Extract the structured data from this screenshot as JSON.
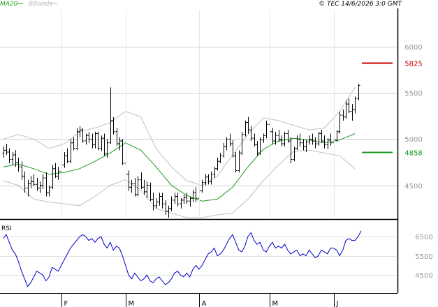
{
  "header": {
    "legend": [
      {
        "label": "MA20",
        "color": "#1e9a1e"
      },
      {
        "label": "BBands",
        "color": "#b4b4b4"
      }
    ],
    "copyright": "© TEC 14/6/2026 3:0 GMT"
  },
  "chart_data": [
    {
      "type": "ohlc",
      "panel": "price",
      "ylim": [
        4150,
        6400
      ],
      "y_ticks": [
        {
          "value": 6000,
          "label": "6000"
        },
        {
          "value": 5500,
          "label": "5500"
        },
        {
          "value": 5000,
          "label": "5000"
        },
        {
          "value": 4500,
          "label": "4500"
        }
      ],
      "x_labels": [
        {
          "label": "F",
          "index": 19
        },
        {
          "label": "M",
          "index": 40
        },
        {
          "label": "A",
          "index": 64
        },
        {
          "label": "M",
          "index": 87
        },
        {
          "label": "J",
          "index": 108
        }
      ],
      "levels": [
        {
          "value": 5825,
          "label": "5825",
          "color": "#cc0000"
        },
        {
          "value": 4858,
          "label": "4858",
          "color": "#1e9a1e"
        }
      ],
      "bars": [
        [
          4850,
          4920,
          4800,
          4880
        ],
        [
          4880,
          4950,
          4830,
          4860
        ],
        [
          4860,
          4900,
          4740,
          4780
        ],
        [
          4780,
          4860,
          4720,
          4830
        ],
        [
          4830,
          4880,
          4700,
          4750
        ],
        [
          4750,
          4800,
          4650,
          4700
        ],
        [
          4700,
          4760,
          4560,
          4600
        ],
        [
          4600,
          4650,
          4420,
          4470
        ],
        [
          4470,
          4560,
          4380,
          4520
        ],
        [
          4520,
          4600,
          4470,
          4540
        ],
        [
          4540,
          4620,
          4490,
          4510
        ],
        [
          4510,
          4580,
          4440,
          4470
        ],
        [
          4470,
          4540,
          4420,
          4500
        ],
        [
          4500,
          4620,
          4460,
          4580
        ],
        [
          4580,
          4640,
          4380,
          4420
        ],
        [
          4420,
          4500,
          4380,
          4480
        ],
        [
          4480,
          4720,
          4460,
          4680
        ],
        [
          4680,
          4740,
          4580,
          4600
        ],
        [
          4600,
          4700,
          4560,
          4650
        ],
        [
          4650,
          4750,
          4600,
          4720
        ],
        [
          4720,
          4860,
          4690,
          4820
        ],
        [
          4820,
          4900,
          4740,
          4760
        ],
        [
          4760,
          5000,
          4740,
          4960
        ],
        [
          4960,
          5020,
          4880,
          4900
        ],
        [
          4900,
          5120,
          4880,
          5080
        ],
        [
          5080,
          5140,
          5020,
          5100
        ],
        [
          5100,
          5120,
          4960,
          4980
        ],
        [
          4980,
          5060,
          4940,
          5040
        ],
        [
          5040,
          5080,
          4960,
          5000
        ],
        [
          5000,
          5060,
          4900,
          4940
        ],
        [
          4940,
          5080,
          4900,
          5060
        ],
        [
          5060,
          5080,
          4880,
          4900
        ],
        [
          4900,
          5040,
          4870,
          5010
        ],
        [
          5010,
          5060,
          4820,
          4840
        ],
        [
          4840,
          5000,
          4800,
          4960
        ],
        [
          4960,
          5560,
          4950,
          5200
        ],
        [
          5200,
          5240,
          5050,
          5080
        ],
        [
          5080,
          5120,
          4930,
          4950
        ],
        [
          4950,
          5020,
          4880,
          4980
        ],
        [
          4980,
          5000,
          4720,
          4740
        ],
        [
          4740,
          4770,
          4600,
          4620
        ],
        [
          4620,
          4660,
          4440,
          4480
        ],
        [
          4480,
          4560,
          4420,
          4520
        ],
        [
          4520,
          4580,
          4380,
          4400
        ],
        [
          4400,
          4600,
          4380,
          4560
        ],
        [
          4560,
          4640,
          4460,
          4480
        ],
        [
          4480,
          4560,
          4400,
          4430
        ],
        [
          4430,
          4540,
          4360,
          4500
        ],
        [
          4500,
          4530,
          4330,
          4350
        ],
        [
          4350,
          4420,
          4230,
          4280
        ],
        [
          4280,
          4360,
          4250,
          4320
        ],
        [
          4320,
          4420,
          4280,
          4380
        ],
        [
          4380,
          4420,
          4250,
          4300
        ],
        [
          4300,
          4340,
          4180,
          4220
        ],
        [
          4220,
          4280,
          4150,
          4250
        ],
        [
          4250,
          4380,
          4220,
          4340
        ],
        [
          4340,
          4420,
          4300,
          4380
        ],
        [
          4380,
          4420,
          4270,
          4300
        ],
        [
          4300,
          4360,
          4250,
          4340
        ],
        [
          4340,
          4400,
          4300,
          4370
        ],
        [
          4370,
          4420,
          4300,
          4330
        ],
        [
          4330,
          4380,
          4270,
          4360
        ],
        [
          4360,
          4450,
          4320,
          4420
        ],
        [
          4420,
          4480,
          4320,
          4360
        ],
        [
          4360,
          4460,
          4340,
          4440
        ],
        [
          4440,
          4560,
          4420,
          4530
        ],
        [
          4530,
          4620,
          4500,
          4590
        ],
        [
          4590,
          4620,
          4510,
          4540
        ],
        [
          4540,
          4650,
          4510,
          4620
        ],
        [
          4620,
          4700,
          4580,
          4680
        ],
        [
          4680,
          4800,
          4660,
          4760
        ],
        [
          4760,
          4850,
          4740,
          4820
        ],
        [
          4820,
          4960,
          4800,
          4920
        ],
        [
          4920,
          5020,
          4880,
          5000
        ],
        [
          5000,
          5060,
          4920,
          4950
        ],
        [
          4950,
          4990,
          4800,
          4820
        ],
        [
          4820,
          4860,
          4640,
          4660
        ],
        [
          4660,
          4880,
          4640,
          4850
        ],
        [
          4850,
          5080,
          4830,
          5050
        ],
        [
          5050,
          5200,
          5030,
          5180
        ],
        [
          5180,
          5240,
          5060,
          5100
        ],
        [
          5100,
          5140,
          4980,
          5010
        ],
        [
          5010,
          5060,
          4920,
          4940
        ],
        [
          4940,
          4980,
          4820,
          4850
        ],
        [
          4850,
          5020,
          4830,
          4990
        ],
        [
          4990,
          5060,
          4960,
          5040
        ],
        [
          5040,
          5200,
          5010,
          5160
        ],
        [
          5160,
          5220,
          5040,
          5080
        ],
        [
          5080,
          5120,
          4950,
          4980
        ],
        [
          4980,
          5080,
          4940,
          5040
        ],
        [
          5040,
          5100,
          4970,
          5000
        ],
        [
          5000,
          5040,
          4920,
          4950
        ],
        [
          4950,
          5080,
          4920,
          5060
        ],
        [
          5060,
          5100,
          4960,
          4980
        ],
        [
          4980,
          5020,
          4740,
          4780
        ],
        [
          4780,
          4920,
          4760,
          4900
        ],
        [
          4900,
          5040,
          4880,
          5000
        ],
        [
          5000,
          5060,
          4920,
          4960
        ],
        [
          4960,
          5000,
          4880,
          4920
        ],
        [
          4920,
          4990,
          4860,
          4970
        ],
        [
          4970,
          5040,
          4940,
          5000
        ],
        [
          5000,
          5060,
          4940,
          4980
        ],
        [
          4980,
          5020,
          4900,
          4950
        ],
        [
          4950,
          5080,
          4930,
          5060
        ],
        [
          5060,
          5100,
          4960,
          4980
        ],
        [
          4980,
          5040,
          4900,
          4940
        ],
        [
          4940,
          5010,
          4890,
          4990
        ],
        [
          4990,
          5060,
          4930,
          4960
        ],
        [
          4960,
          5020,
          4900,
          4990
        ],
        [
          4990,
          5100,
          4970,
          5080
        ],
        [
          5080,
          5300,
          5060,
          5260
        ],
        [
          5260,
          5320,
          5200,
          5240
        ],
        [
          5240,
          5420,
          5220,
          5380
        ],
        [
          5380,
          5440,
          5280,
          5300
        ],
        [
          5300,
          5380,
          5200,
          5320
        ],
        [
          5320,
          5460,
          5280,
          5440
        ],
        [
          5440,
          5600,
          5420,
          5580
        ]
      ],
      "ma20": [
        [
          0,
          4700
        ],
        [
          5,
          4730
        ],
        [
          10,
          4680
        ],
        [
          15,
          4620
        ],
        [
          20,
          4640
        ],
        [
          25,
          4680
        ],
        [
          30,
          4760
        ],
        [
          35,
          4850
        ],
        [
          40,
          4960
        ],
        [
          45,
          4880
        ],
        [
          50,
          4700
        ],
        [
          55,
          4500
        ],
        [
          60,
          4390
        ],
        [
          65,
          4330
        ],
        [
          70,
          4350
        ],
        [
          75,
          4480
        ],
        [
          80,
          4700
        ],
        [
          85,
          4890
        ],
        [
          90,
          4980
        ],
        [
          95,
          5010
        ],
        [
          100,
          4990
        ],
        [
          105,
          4960
        ],
        [
          110,
          4990
        ],
        [
          115,
          5060
        ]
      ],
      "bb_upper": [
        [
          0,
          5000
        ],
        [
          5,
          5050
        ],
        [
          10,
          5000
        ],
        [
          15,
          4900
        ],
        [
          20,
          4950
        ],
        [
          25,
          5080
        ],
        [
          30,
          5120
        ],
        [
          35,
          5180
        ],
        [
          40,
          5300
        ],
        [
          45,
          5240
        ],
        [
          50,
          4900
        ],
        [
          55,
          4700
        ],
        [
          60,
          4550
        ],
        [
          65,
          4500
        ],
        [
          70,
          4600
        ],
        [
          75,
          4830
        ],
        [
          80,
          5050
        ],
        [
          85,
          5230
        ],
        [
          90,
          5200
        ],
        [
          95,
          5150
        ],
        [
          100,
          5100
        ],
        [
          105,
          5120
        ],
        [
          110,
          5300
        ],
        [
          115,
          5560
        ]
      ],
      "bb_lower": [
        [
          0,
          4550
        ],
        [
          5,
          4500
        ],
        [
          10,
          4350
        ],
        [
          15,
          4320
        ],
        [
          20,
          4300
        ],
        [
          25,
          4280
        ],
        [
          30,
          4380
        ],
        [
          35,
          4500
        ],
        [
          40,
          4560
        ],
        [
          45,
          4450
        ],
        [
          50,
          4250
        ],
        [
          55,
          4200
        ],
        [
          60,
          4150
        ],
        [
          65,
          4150
        ],
        [
          70,
          4180
        ],
        [
          75,
          4200
        ],
        [
          80,
          4350
        ],
        [
          85,
          4550
        ],
        [
          90,
          4720
        ],
        [
          95,
          4870
        ],
        [
          100,
          4880
        ],
        [
          105,
          4850
        ],
        [
          110,
          4820
        ],
        [
          115,
          4680
        ]
      ]
    },
    {
      "type": "line",
      "panel": "rsi",
      "title": "RSI",
      "ylim": [
        3600,
        7300
      ],
      "y_ticks": [
        {
          "value": 6500,
          "label": "6500"
        },
        {
          "value": 5500,
          "label": "5500"
        },
        {
          "value": 4500,
          "label": "4500"
        }
      ],
      "series": [
        {
          "color": "#0000cc",
          "values": [
            6400,
            6600,
            6200,
            5800,
            5600,
            5200,
            4700,
            4300,
            3900,
            4100,
            4400,
            4700,
            4600,
            4500,
            4200,
            4400,
            4900,
            4800,
            4700,
            5000,
            5300,
            5600,
            5900,
            6100,
            6300,
            6500,
            6600,
            6500,
            6300,
            6400,
            6200,
            6400,
            6500,
            6100,
            5900,
            6200,
            5800,
            6000,
            5900,
            5500,
            5000,
            4500,
            4300,
            4600,
            4400,
            4200,
            4300,
            4500,
            4200,
            4100,
            4300,
            4400,
            4200,
            4000,
            4100,
            4300,
            4600,
            4700,
            4500,
            4400,
            4600,
            4400,
            4800,
            5000,
            4800,
            5000,
            5300,
            5600,
            5700,
            5900,
            5500,
            5600,
            5800,
            6100,
            6400,
            6600,
            6200,
            5800,
            5700,
            6000,
            6500,
            6700,
            6300,
            6100,
            6200,
            5800,
            5700,
            6000,
            6200,
            5900,
            6000,
            5900,
            6100,
            5800,
            5600,
            5700,
            5800,
            5500,
            5600,
            5500,
            5800,
            5600,
            5400,
            5500,
            5800,
            5700,
            5600,
            5900,
            5900,
            5800,
            5500,
            5800,
            6300,
            6400,
            6300,
            6300,
            6500,
            6800
          ]
        }
      ]
    }
  ]
}
